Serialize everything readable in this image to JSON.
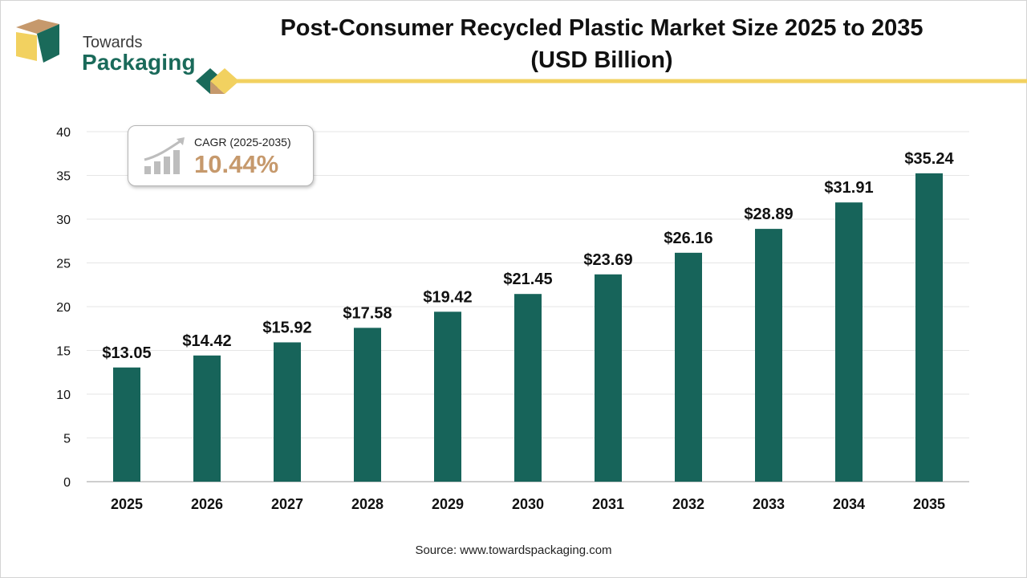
{
  "brand": {
    "line1": "Towards",
    "line2": "Packaging",
    "colors": {
      "teal": "#1a6a5a",
      "gold": "#f2d160",
      "tan": "#c6996c"
    }
  },
  "header": {
    "title_line1": "Post-Consumer Recycled Plastic Market Size 2025 to 2035",
    "title_line2": "(USD Billion)"
  },
  "cagr": {
    "label": "CAGR (2025-2035)",
    "value": "10.44%",
    "icon": "growth-chart-icon"
  },
  "source": "Source: www.towardspackaging.com",
  "chart_data": {
    "type": "bar",
    "title": "Post-Consumer Recycled Plastic Market Size 2025 to 2035 (USD Billion)",
    "xlabel": "",
    "ylabel": "",
    "categories": [
      "2025",
      "2026",
      "2027",
      "2028",
      "2029",
      "2030",
      "2031",
      "2032",
      "2033",
      "2034",
      "2035"
    ],
    "values": [
      13.05,
      14.42,
      15.92,
      17.58,
      19.42,
      21.45,
      23.69,
      26.16,
      28.89,
      31.91,
      35.24
    ],
    "data_labels": [
      "$13.05",
      "$14.42",
      "$15.92",
      "$17.58",
      "$19.42",
      "$21.45",
      "$23.69",
      "$26.16",
      "$28.89",
      "$31.91",
      "$35.24"
    ],
    "ylim": [
      0,
      40
    ],
    "yticks": [
      0,
      5,
      10,
      15,
      20,
      25,
      30,
      35,
      40
    ],
    "grid": true,
    "legend": "none",
    "bar_color": "#17645a"
  }
}
